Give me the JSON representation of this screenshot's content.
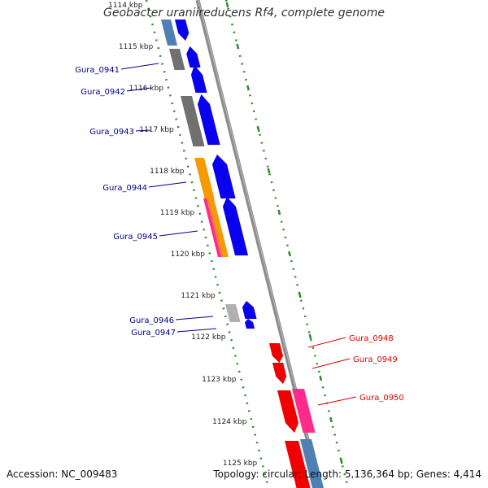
{
  "title": "Geobacter uraniireducens Rf4, complete genome",
  "accession": "Accession: NC_009483",
  "summary": "Topology: circular; Length: 5,136,364 bp; Genes: 4,414",
  "colors": {
    "backbone": "#8c8c8c",
    "tick": "#2e8b2e",
    "forward_cds": "#0a00f0",
    "reverse_cds": "#f00000",
    "forward_label": "#00008b",
    "reverse_label": "#e00000",
    "gray_feature": "#707070",
    "steel_feature": "#4f7fb5",
    "orange_feature": "#f59a00",
    "pink_feature": "#ff2a8a",
    "tick_label": "#222222"
  },
  "kbp_labels": [
    "1114 kbp",
    "1115 kbp",
    "1116 kbp",
    "1117 kbp",
    "1118 kbp",
    "1119 kbp",
    "1120 kbp",
    "1121 kbp",
    "1122 kbp",
    "1123 kbp",
    "1124 kbp",
    "1125 kbp"
  ],
  "gene_labels_left": [
    "Gura_0941",
    "Gura_0942",
    "Gura_0943",
    "Gura_0944",
    "Gura_0945",
    "Gura_0946",
    "Gura_0947"
  ],
  "gene_labels_right": [
    "Gura_0948",
    "Gura_0949",
    "Gura_0950"
  ]
}
